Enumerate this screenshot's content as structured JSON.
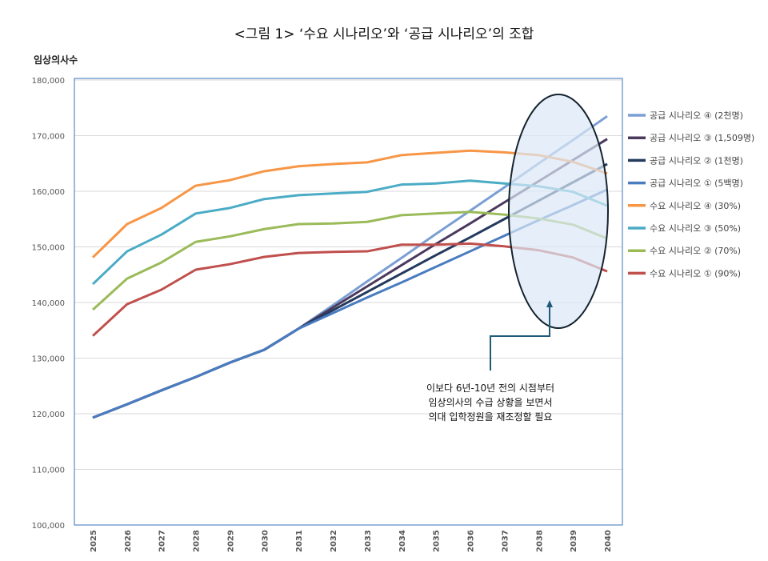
{
  "chart_data": {
    "type": "line",
    "title": "<그림 1> ‘수요 시나리오’와 ‘공급 시나리오’의 조합",
    "ylabel": "임상의사수",
    "xlabel": "",
    "ylim": [
      100000,
      180000
    ],
    "yticks": [
      "100,000",
      "110,000",
      "120,000",
      "130,000",
      "140,000",
      "150,000",
      "160,000",
      "170,000",
      "180,000"
    ],
    "x": [
      "2025",
      "2026",
      "2027",
      "2028",
      "2029",
      "2030",
      "2031",
      "2032",
      "2033",
      "2034",
      "2035",
      "2036",
      "2037",
      "2038",
      "2039",
      "2040"
    ],
    "grid": true,
    "legend_position": "right",
    "series": [
      {
        "name": "공급 시나리오 ④ (2천명)",
        "color": "#7b9fd4",
        "values": [
          119300,
          121700,
          124200,
          126600,
          129200,
          131500,
          135300,
          139500,
          143800,
          148000,
          152300,
          156500,
          160700,
          165000,
          169200,
          173500
        ]
      },
      {
        "name": "공급 시나리오 ③ (1,509명)",
        "color": "#4b3a5e",
        "values": [
          119300,
          121700,
          124200,
          126600,
          129200,
          131500,
          135300,
          139100,
          142900,
          146700,
          150500,
          154200,
          158000,
          161800,
          165600,
          169400
        ]
      },
      {
        "name": "공급 시나리오 ② (1천명)",
        "color": "#243a5e",
        "values": [
          119300,
          121700,
          124200,
          126600,
          129200,
          131500,
          135300,
          138600,
          141900,
          145200,
          148500,
          151700,
          155000,
          158300,
          161600,
          164900
        ]
      },
      {
        "name": "공급 시나리오 ① (5백명)",
        "color": "#4a7cc0",
        "values": [
          119300,
          121700,
          124200,
          126600,
          129200,
          131500,
          135300,
          138100,
          140900,
          143600,
          146400,
          149200,
          152000,
          154800,
          157500,
          160300
        ]
      },
      {
        "name": "수요 시나리오 ④ (30%)",
        "color": "#f79646",
        "values": [
          148100,
          154100,
          157000,
          161000,
          162000,
          163600,
          164500,
          164900,
          165200,
          166500,
          166900,
          167300,
          167000,
          166500,
          165300,
          163200
        ]
      },
      {
        "name": "수요 시나리오 ③ (50%)",
        "color": "#4bacc6",
        "values": [
          143300,
          149200,
          152200,
          156000,
          157000,
          158600,
          159300,
          159600,
          159900,
          161200,
          161400,
          161900,
          161400,
          160900,
          159900,
          157400
        ]
      },
      {
        "name": "수요 시나리오 ② (70%)",
        "color": "#9bbb59",
        "values": [
          138700,
          144300,
          147200,
          150900,
          151900,
          153200,
          154100,
          154200,
          154500,
          155700,
          156000,
          156300,
          155800,
          155100,
          154000,
          151500
        ]
      },
      {
        "name": "수요 시나리오 ① (90%)",
        "color": "#c0504d",
        "values": [
          134000,
          139700,
          142300,
          145900,
          146900,
          148200,
          148900,
          149100,
          149200,
          150400,
          150400,
          150600,
          150100,
          149400,
          148100,
          145600
        ]
      }
    ],
    "annotation": [
      "이보다 6년-10년 전의 시점부터",
      "임상의사의 수급 상황을 보면서",
      "의대 입학정원을 재조정할 필요"
    ]
  }
}
